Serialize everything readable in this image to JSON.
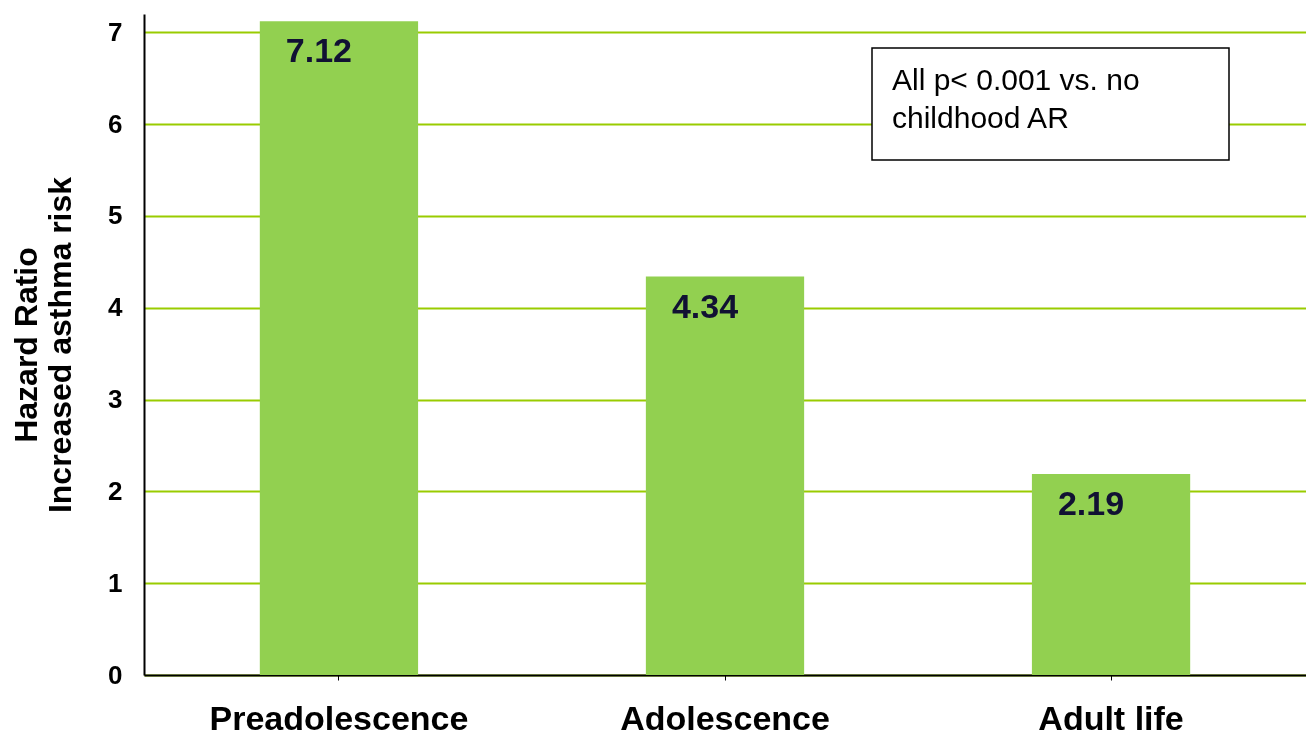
{
  "chart_data": {
    "type": "bar",
    "ylabel": "Hazard Ratio\nIncreased asthma risk",
    "categories": [
      "Preadolescence",
      "Adolescence",
      "Adult life"
    ],
    "values": [
      7.12,
      4.34,
      2.19
    ],
    "color": "#92d050",
    "ylim": [
      0,
      7.2
    ],
    "yticks": [
      0,
      1,
      2,
      3,
      4,
      5,
      6,
      7
    ],
    "grid": "y",
    "data_labels": true,
    "annotations": [
      "All p< 0.001 vs. no\nchildhood AR"
    ]
  }
}
